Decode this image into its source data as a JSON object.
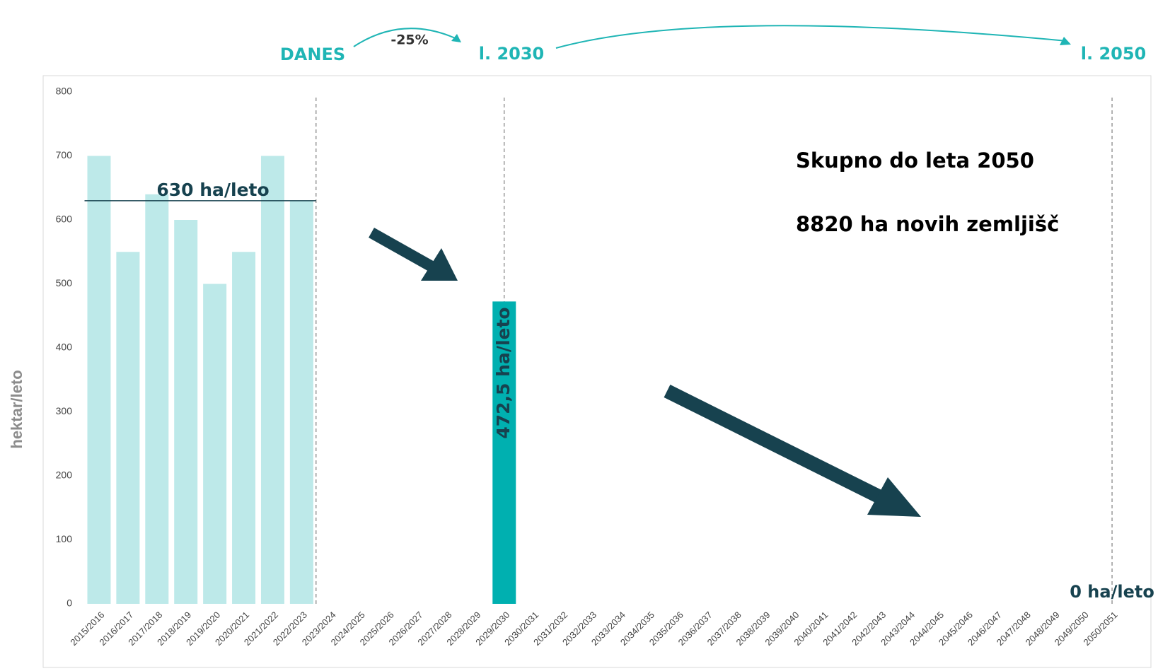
{
  "chart_data": {
    "type": "bar",
    "y_label": "hektar/leto",
    "categories": [
      "2015/2016",
      "2016/2017",
      "2017/2018",
      "2018/2019",
      "2019/2020",
      "2020/2021",
      "2021/2022",
      "2022/2023",
      "2023/2024",
      "2024/2025",
      "2025/2026",
      "2026/2027",
      "2027/2028",
      "2028/2029",
      "2029/2030",
      "2030/2031",
      "2031/2032",
      "2032/2033",
      "2033/2034",
      "2034/2035",
      "2035/2036",
      "2036/2037",
      "2037/2038",
      "2038/2039",
      "2039/2040",
      "2040/2041",
      "2041/2042",
      "2042/2043",
      "2043/2044",
      "2044/2045",
      "2045/2046",
      "2046/2047",
      "2047/2048",
      "2048/2049",
      "2049/2050",
      "2050/2051"
    ],
    "values": [
      700,
      550,
      640,
      600,
      500,
      550,
      700,
      630,
      null,
      null,
      null,
      null,
      null,
      null,
      472.5,
      null,
      null,
      null,
      null,
      null,
      null,
      null,
      null,
      null,
      null,
      null,
      null,
      null,
      null,
      null,
      null,
      null,
      null,
      null,
      null,
      0
    ],
    "value_labels": [
      null,
      null,
      null,
      null,
      null,
      null,
      null,
      null,
      null,
      null,
      null,
      null,
      null,
      null,
      "472,5 ha/leto",
      null,
      null,
      null,
      null,
      null,
      null,
      null,
      null,
      null,
      null,
      null,
      null,
      null,
      null,
      null,
      null,
      null,
      null,
      null,
      null,
      "0 ha/leto"
    ],
    "colors": [
      "#bde9e9",
      "#bde9e9",
      "#bde9e9",
      "#bde9e9",
      "#bde9e9",
      "#bde9e9",
      "#bde9e9",
      "#bde9e9",
      null,
      null,
      null,
      null,
      null,
      null,
      "#00b0b0",
      null,
      null,
      null,
      null,
      null,
      null,
      null,
      null,
      null,
      null,
      null,
      null,
      null,
      null,
      null,
      null,
      null,
      null,
      null,
      null,
      "#00b0b0"
    ],
    "ylim": [
      0,
      800
    ],
    "yticks": [
      0,
      100,
      200,
      300,
      400,
      500,
      600,
      700,
      800
    ],
    "average": {
      "value": 630,
      "label": "630 ha/leto"
    },
    "timeline": {
      "today": "DANES",
      "change": "-25%",
      "mid": "l. 2030",
      "end": "l. 2050"
    },
    "summary": [
      "Skupno do leta 2050",
      "8820 ha novih zemljišč"
    ]
  }
}
